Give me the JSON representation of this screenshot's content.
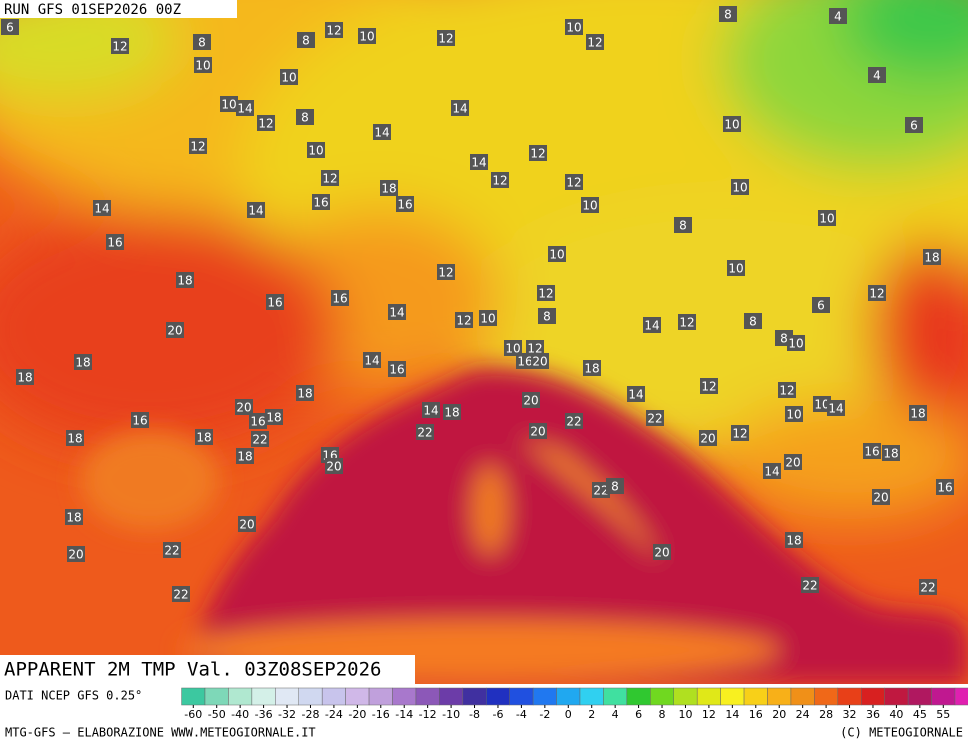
{
  "map": {
    "run_label": "RUN GFS 01SEP2026 00Z",
    "title": "APPARENT 2M TMP Val. 03Z08SEP2026",
    "source": "DATI NCEP GFS 0.25°",
    "footer_left": "MTG-GFS — ELABORAZIONE WWW.METEOGIORNALE.IT",
    "footer_right": "(C) METEOGIORNALE",
    "colorbar_ticks": [
      -60,
      -50,
      -40,
      -36,
      -32,
      -28,
      -24,
      -20,
      -16,
      -14,
      -12,
      -10,
      -8,
      -6,
      -4,
      -2,
      0,
      2,
      4,
      6,
      8,
      10,
      12,
      14,
      16,
      20,
      24,
      28,
      32,
      36,
      40,
      45,
      55
    ],
    "labels": [
      6,
      12,
      8,
      8,
      12,
      10,
      12,
      10,
      12,
      8,
      4,
      10,
      10,
      4,
      10,
      14,
      12,
      8,
      14,
      14,
      10,
      6,
      12,
      10,
      12,
      14,
      12,
      12,
      12,
      10,
      18,
      16,
      16,
      10,
      14,
      14,
      10,
      8,
      16,
      10,
      18,
      10,
      12,
      18,
      12,
      12,
      16,
      16,
      6,
      14,
      12,
      10,
      8,
      8,
      14,
      12,
      20,
      8,
      10,
      10,
      12,
      16,
      20,
      18,
      14,
      16,
      18,
      18,
      12,
      12,
      14,
      18,
      20,
      10,
      14,
      10,
      18,
      20,
      16,
      18,
      16,
      14,
      18,
      22,
      22,
      18,
      18,
      22,
      22,
      20,
      20,
      12,
      16,
      18,
      18,
      16,
      20,
      20,
      14,
      16,
      22,
      8,
      20,
      18,
      20,
      22,
      20,
      18,
      20,
      22,
      22,
      22
    ]
  }
}
